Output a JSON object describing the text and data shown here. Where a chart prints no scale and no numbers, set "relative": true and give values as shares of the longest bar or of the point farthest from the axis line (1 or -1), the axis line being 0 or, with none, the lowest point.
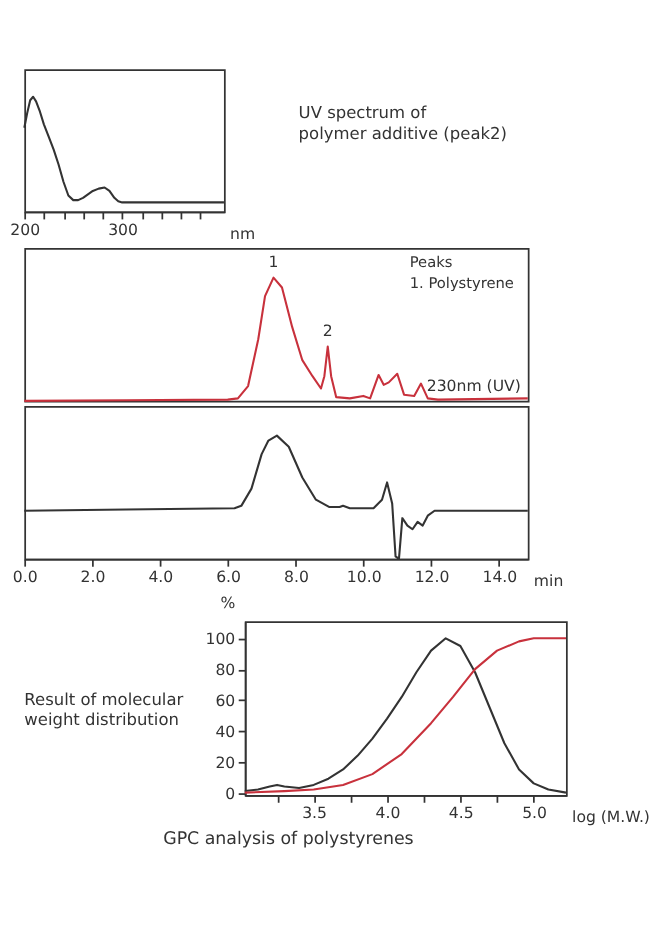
{
  "chart_data": [
    {
      "type": "line",
      "relative": true,
      "xlim": [
        200,
        404
      ],
      "xticks": [
        200,
        {
          "value": 220,
          "label": null
        },
        {
          "value": 240,
          "label": null
        },
        {
          "value": 260,
          "label": null
        },
        {
          "value": 280,
          "label": null
        },
        300,
        {
          "value": 320,
          "label": null
        },
        {
          "value": 340,
          "label": null
        },
        {
          "value": 360,
          "label": null
        },
        {
          "value": 380,
          "label": null
        }
      ],
      "xlabel": "nm",
      "annotations": [
        "UV spectrum of\npolymer additive (peak2)"
      ],
      "series": [
        {
          "color": "#333333",
          "x": [
            200,
            203,
            206,
            209,
            212,
            216,
            220,
            225,
            230,
            235,
            240,
            245,
            250,
            255,
            260,
            265,
            270,
            276,
            282,
            287,
            292,
            296,
            300,
            320,
            360,
            404
          ],
          "values": [
            0.73,
            0.86,
            0.97,
            1.0,
            0.96,
            0.87,
            0.76,
            0.65,
            0.54,
            0.41,
            0.26,
            0.14,
            0.1,
            0.1,
            0.12,
            0.15,
            0.18,
            0.2,
            0.21,
            0.18,
            0.12,
            0.09,
            0.08,
            0.08,
            0.08,
            0.08
          ]
        }
      ]
    },
    {
      "type": "line",
      "relative": true,
      "xlim": [
        0,
        14.85
      ],
      "tick_labels": false,
      "annotations": [
        {
          "text": "1",
          "x": 7.35,
          "y": 1.0
        },
        {
          "text": "2",
          "x": 8.95,
          "y": 0.44
        },
        "Peaks",
        "1. Polystyrene"
      ],
      "series": [
        {
          "name": "230nm (UV)",
          "color": "#c8313c",
          "x": [
            0,
            3,
            6.0,
            6.3,
            6.6,
            6.9,
            7.1,
            7.35,
            7.6,
            7.9,
            8.2,
            8.5,
            8.75,
            8.85,
            8.95,
            9.05,
            9.2,
            9.6,
            10.0,
            10.2,
            10.45,
            10.6,
            10.75,
            11.0,
            11.2,
            11.5,
            11.7,
            11.9,
            12.2,
            14.85
          ],
          "values": [
            0,
            0.005,
            0.01,
            0.02,
            0.12,
            0.5,
            0.85,
            1.0,
            0.92,
            0.6,
            0.33,
            0.2,
            0.1,
            0.2,
            0.44,
            0.2,
            0.03,
            0.02,
            0.04,
            0.02,
            0.21,
            0.13,
            0.15,
            0.22,
            0.05,
            0.04,
            0.14,
            0.02,
            0.01,
            0.02
          ]
        }
      ]
    },
    {
      "type": "line",
      "relative": true,
      "xlim": [
        0,
        14.85
      ],
      "xlabel": "min",
      "xticks": [
        {
          "value": 0,
          "label": "0.0"
        },
        {
          "value": 2,
          "label": "2.0"
        },
        {
          "value": 4,
          "label": "4.0"
        },
        {
          "value": 6,
          "label": "6.0"
        },
        {
          "value": 8,
          "label": "8.0"
        },
        {
          "value": 10,
          "label": "10.0"
        },
        {
          "value": 12,
          "label": "12.0"
        },
        {
          "value": 14,
          "label": "14.0"
        }
      ],
      "series": [
        {
          "color": "#333333",
          "x": [
            0,
            3,
            6.2,
            6.4,
            6.7,
            7.0,
            7.2,
            7.45,
            7.8,
            8.2,
            8.6,
            9.0,
            9.3,
            9.4,
            9.6,
            10.3,
            10.55,
            10.7,
            10.85,
            10.95,
            11.05,
            11.15,
            11.3,
            11.45,
            11.6,
            11.75,
            11.9,
            12.1,
            14.85
          ],
          "values": [
            0.39,
            0.4,
            0.41,
            0.43,
            0.57,
            0.85,
            0.96,
            1.0,
            0.91,
            0.66,
            0.48,
            0.42,
            0.42,
            0.43,
            0.41,
            0.41,
            0.48,
            0.62,
            0.45,
            0.02,
            0.0,
            0.33,
            0.27,
            0.24,
            0.3,
            0.27,
            0.35,
            0.39,
            0.39
          ]
        }
      ]
    },
    {
      "type": "line",
      "xlim": [
        3.03,
        5.22
      ],
      "ylim": [
        -1.5,
        111
      ],
      "xticks": [
        {
          "value": 3.25,
          "label": null
        },
        3.5,
        {
          "value": 3.75,
          "label": null
        },
        {
          "value": 4.0,
          "label": "4.0"
        },
        {
          "value": 4.25,
          "label": null
        },
        4.5,
        {
          "value": 4.75,
          "label": null
        },
        {
          "value": 5.0,
          "label": "5.0"
        }
      ],
      "yticks": [
        0,
        20,
        40,
        60,
        80,
        100
      ],
      "xlabel": "log (M.W.)",
      "ylabel": "%",
      "annotations": [
        "Result of molecular\nweight distribution",
        "GPC analysis of polystyrenes"
      ],
      "series": [
        {
          "color": "#333333",
          "x": [
            3.03,
            3.12,
            3.2,
            3.25,
            3.3,
            3.4,
            3.5,
            3.6,
            3.7,
            3.8,
            3.9,
            4.0,
            4.1,
            4.2,
            4.3,
            4.4,
            4.5,
            4.6,
            4.7,
            4.8,
            4.9,
            5.0,
            5.1,
            5.22
          ],
          "values": [
            1,
            2,
            4,
            5,
            4,
            3,
            5,
            9,
            15,
            24,
            35,
            48,
            62,
            78,
            92,
            100,
            95,
            78,
            55,
            32,
            15,
            6,
            2,
            0
          ]
        },
        {
          "color": "#c8313c",
          "x": [
            3.03,
            3.3,
            3.5,
            3.7,
            3.9,
            4.1,
            4.3,
            4.45,
            4.6,
            4.75,
            4.9,
            5.0,
            5.1,
            5.22
          ],
          "values": [
            0,
            1,
            2,
            5,
            12,
            25,
            45,
            62,
            80,
            92,
            98,
            100,
            100,
            100
          ]
        }
      ]
    }
  ]
}
